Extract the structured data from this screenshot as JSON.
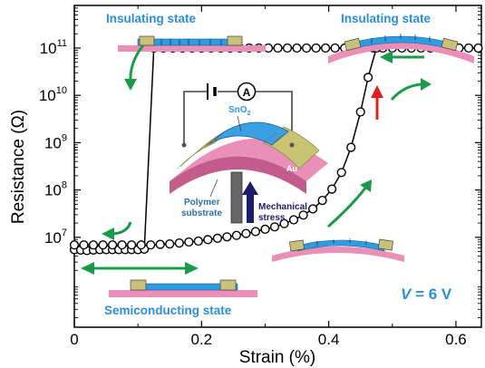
{
  "chart_data": {
    "type": "scatter",
    "xlabel": "Strain (%)",
    "ylabel": "Resistance (Ω)",
    "xlim": [
      0,
      0.64
    ],
    "ylim_log10": [
      5.1,
      11.9
    ],
    "x_ticks": [
      "0",
      "0.2",
      "0.4",
      "0.6"
    ],
    "x_tick_values": [
      0,
      0.2,
      0.4,
      0.6
    ],
    "y_ticks": [
      {
        "base": "10",
        "exp": "11",
        "value": 11
      },
      {
        "base": "10",
        "exp": "10",
        "value": 10
      },
      {
        "base": "10",
        "exp": "9",
        "value": 9
      },
      {
        "base": "10",
        "exp": "8",
        "value": 8
      },
      {
        "base": "10",
        "exp": "7",
        "value": 7
      }
    ],
    "series": [
      {
        "values_note": "",
        "points": [
          [
            0.0,
            6.74
          ],
          [
            0.01,
            6.73
          ],
          [
            0.02,
            6.72
          ],
          [
            0.03,
            6.73
          ],
          [
            0.04,
            6.74
          ],
          [
            0.05,
            6.74
          ],
          [
            0.06,
            6.74
          ],
          [
            0.07,
            6.74
          ],
          [
            0.08,
            6.74
          ],
          [
            0.09,
            6.74
          ],
          [
            0.1,
            6.74
          ],
          [
            0.11,
            6.75
          ],
          [
            0.125,
            11.0
          ],
          [
            0.14,
            11.0
          ],
          [
            0.155,
            11.0
          ],
          [
            0.17,
            11.0
          ],
          [
            0.185,
            11.0
          ],
          [
            0.2,
            11.0
          ],
          [
            0.215,
            11.0
          ],
          [
            0.23,
            11.0
          ],
          [
            0.245,
            11.0
          ],
          [
            0.26,
            11.0
          ],
          [
            0.275,
            11.0
          ],
          [
            0.29,
            11.0
          ],
          [
            0.305,
            11.0
          ],
          [
            0.32,
            11.0
          ],
          [
            0.335,
            11.0
          ],
          [
            0.35,
            11.0
          ],
          [
            0.365,
            11.0
          ],
          [
            0.38,
            11.0
          ],
          [
            0.395,
            11.0
          ],
          [
            0.41,
            11.0
          ],
          [
            0.425,
            11.0
          ],
          [
            0.44,
            11.0
          ],
          [
            0.455,
            11.0
          ],
          [
            0.47,
            11.0
          ],
          [
            0.485,
            11.0
          ],
          [
            0.5,
            11.0
          ],
          [
            0.515,
            11.0
          ],
          [
            0.53,
            11.0
          ],
          [
            0.545,
            11.0
          ],
          [
            0.56,
            11.0
          ],
          [
            0.575,
            11.0
          ],
          [
            0.59,
            11.0
          ],
          [
            0.605,
            11.0
          ],
          [
            0.62,
            11.0
          ],
          [
            0.635,
            11.0
          ]
        ]
      },
      {
        "points": [
          [
            0.0,
            6.84
          ],
          [
            0.015,
            6.84
          ],
          [
            0.03,
            6.84
          ],
          [
            0.045,
            6.84
          ],
          [
            0.06,
            6.84
          ],
          [
            0.075,
            6.84
          ],
          [
            0.09,
            6.84
          ],
          [
            0.105,
            6.84
          ],
          [
            0.12,
            6.84
          ],
          [
            0.135,
            6.85
          ],
          [
            0.15,
            6.86
          ],
          [
            0.165,
            6.88
          ],
          [
            0.18,
            6.9
          ],
          [
            0.195,
            6.92
          ],
          [
            0.21,
            6.95
          ],
          [
            0.225,
            6.98
          ],
          [
            0.24,
            7.01
          ],
          [
            0.255,
            7.04
          ],
          [
            0.27,
            7.08
          ],
          [
            0.285,
            7.12
          ],
          [
            0.3,
            7.17
          ],
          [
            0.315,
            7.22
          ],
          [
            0.33,
            7.29
          ],
          [
            0.345,
            7.37
          ],
          [
            0.36,
            7.47
          ],
          [
            0.375,
            7.6
          ],
          [
            0.39,
            7.78
          ],
          [
            0.405,
            8.02
          ],
          [
            0.42,
            8.37
          ],
          [
            0.435,
            8.9
          ],
          [
            0.45,
            9.65
          ],
          [
            0.462,
            10.38
          ],
          [
            0.475,
            11.0
          ]
        ]
      }
    ]
  },
  "annotations": {
    "insulating_left": "Insulating state",
    "insulating_right": "Insulating state",
    "semiconducting": "Semiconducting state",
    "voltage_symbol": "V",
    "voltage_value": " = 6 V",
    "sno2_main": "SnO",
    "sno2_sub": "2",
    "au_left": "Au",
    "au_right": "Au",
    "polymer_line1": "Polymer",
    "polymer_line2": "substrate",
    "mechanical_line1": "Mechanical",
    "mechanical_line2": "stress",
    "ammeter": "A"
  },
  "colors": {
    "green_arrow": "#1a9a4a",
    "red_arrow": "#e0201a",
    "pink_substrate": "#e98fb8",
    "blue_film": "#2f9be0",
    "gold_electrode": "#c9c07a",
    "label_blue": "#2a8fd6",
    "dark_navy": "#1c1d6b"
  }
}
